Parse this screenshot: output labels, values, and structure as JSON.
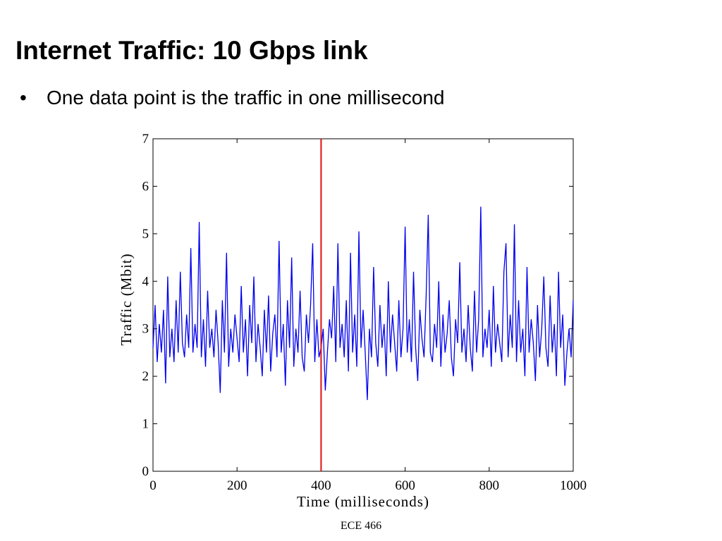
{
  "title": "Internet Traffic: 10 Gbps link",
  "bullet": "One data point is the traffic in one millisecond",
  "footer": "ECE 466",
  "chart_data": {
    "type": "line",
    "xlabel": "Time (milliseconds)",
    "ylabel": "Traffic (Mbit)",
    "xlim": [
      0,
      1000
    ],
    "ylim": [
      0,
      7
    ],
    "xticks": [
      0,
      200,
      400,
      600,
      800,
      1000
    ],
    "yticks": [
      0,
      1,
      2,
      3,
      4,
      5,
      6,
      7
    ],
    "vline": {
      "x": 400,
      "color": "#e01010"
    },
    "x": [
      0,
      5,
      10,
      15,
      20,
      25,
      30,
      35,
      40,
      45,
      50,
      55,
      60,
      65,
      70,
      75,
      80,
      85,
      90,
      95,
      100,
      105,
      110,
      115,
      120,
      125,
      130,
      135,
      140,
      145,
      150,
      155,
      160,
      165,
      170,
      175,
      180,
      185,
      190,
      195,
      200,
      205,
      210,
      215,
      220,
      225,
      230,
      235,
      240,
      245,
      250,
      255,
      260,
      265,
      270,
      275,
      280,
      285,
      290,
      295,
      300,
      305,
      310,
      315,
      320,
      325,
      330,
      335,
      340,
      345,
      350,
      355,
      360,
      365,
      370,
      375,
      380,
      385,
      390,
      395,
      400,
      405,
      410,
      415,
      420,
      425,
      430,
      435,
      440,
      445,
      450,
      455,
      460,
      465,
      470,
      475,
      480,
      485,
      490,
      495,
      500,
      505,
      510,
      515,
      520,
      525,
      530,
      535,
      540,
      545,
      550,
      555,
      560,
      565,
      570,
      575,
      580,
      585,
      590,
      595,
      600,
      605,
      610,
      615,
      620,
      625,
      630,
      635,
      640,
      645,
      650,
      655,
      660,
      665,
      670,
      675,
      680,
      685,
      690,
      695,
      700,
      705,
      710,
      715,
      720,
      725,
      730,
      735,
      740,
      745,
      750,
      755,
      760,
      765,
      770,
      775,
      780,
      785,
      790,
      795,
      800,
      805,
      810,
      815,
      820,
      825,
      830,
      835,
      840,
      845,
      850,
      855,
      860,
      865,
      870,
      875,
      880,
      885,
      890,
      895,
      900,
      905,
      910,
      915,
      920,
      925,
      930,
      935,
      940,
      945,
      950,
      955,
      960,
      965,
      970,
      975,
      980,
      985,
      990,
      995,
      1000
    ],
    "series": [
      {
        "name": "Traffic",
        "color": "#0000ee",
        "values": [
          2.6,
          3.5,
          2.3,
          3.1,
          2.5,
          3.4,
          1.85,
          4.1,
          2.4,
          3.0,
          2.3,
          3.6,
          2.5,
          4.2,
          2.7,
          2.4,
          3.3,
          2.6,
          4.7,
          2.5,
          3.1,
          2.6,
          5.25,
          2.4,
          3.2,
          2.2,
          3.8,
          2.6,
          3.0,
          2.4,
          3.4,
          2.7,
          1.65,
          3.6,
          2.5,
          4.6,
          2.2,
          3.0,
          2.5,
          3.3,
          2.8,
          2.3,
          3.9,
          2.5,
          3.2,
          2.0,
          3.5,
          2.7,
          4.1,
          2.3,
          3.1,
          2.6,
          2.0,
          3.4,
          2.5,
          3.7,
          2.1,
          2.9,
          3.3,
          2.4,
          4.85,
          2.5,
          3.1,
          1.8,
          3.6,
          2.6,
          4.5,
          2.2,
          3.0,
          2.5,
          3.8,
          2.4,
          2.1,
          3.3,
          2.7,
          3.5,
          4.8,
          2.3,
          3.2,
          2.4,
          2.6,
          3.0,
          1.7,
          2.5,
          3.2,
          2.8,
          3.9,
          2.3,
          4.8,
          2.6,
          3.1,
          2.4,
          3.6,
          2.1,
          4.6,
          2.5,
          3.3,
          2.2,
          5.05,
          2.6,
          3.4,
          2.5,
          1.5,
          3.0,
          2.4,
          4.3,
          2.7,
          2.2,
          3.5,
          2.6,
          3.1,
          2.0,
          4.0,
          2.5,
          3.3,
          2.7,
          2.1,
          3.6,
          2.4,
          3.0,
          5.15,
          2.5,
          3.2,
          2.3,
          4.2,
          2.6,
          1.9,
          3.4,
          2.8,
          2.4,
          3.7,
          5.4,
          2.5,
          2.3,
          3.1,
          2.6,
          4.0,
          2.2,
          3.3,
          2.5,
          2.9,
          3.6,
          2.4,
          2.0,
          3.2,
          2.7,
          4.4,
          2.5,
          3.0,
          2.3,
          3.5,
          2.6,
          2.1,
          3.8,
          2.5,
          3.2,
          5.57,
          2.4,
          3.0,
          2.6,
          3.4,
          2.2,
          3.9,
          2.5,
          3.1,
          2.7,
          2.3,
          4.2,
          4.8,
          2.4,
          3.3,
          2.6,
          5.2,
          2.3,
          3.6,
          2.5,
          3.0,
          2.0,
          4.3,
          2.5,
          3.2,
          2.7,
          1.9,
          3.5,
          2.4,
          3.0,
          4.1,
          2.6,
          2.2,
          3.7,
          2.5,
          3.1,
          2.0,
          4.2,
          2.6,
          3.3,
          1.8,
          2.5,
          3.0,
          2.4,
          3.6
        ]
      }
    ]
  }
}
